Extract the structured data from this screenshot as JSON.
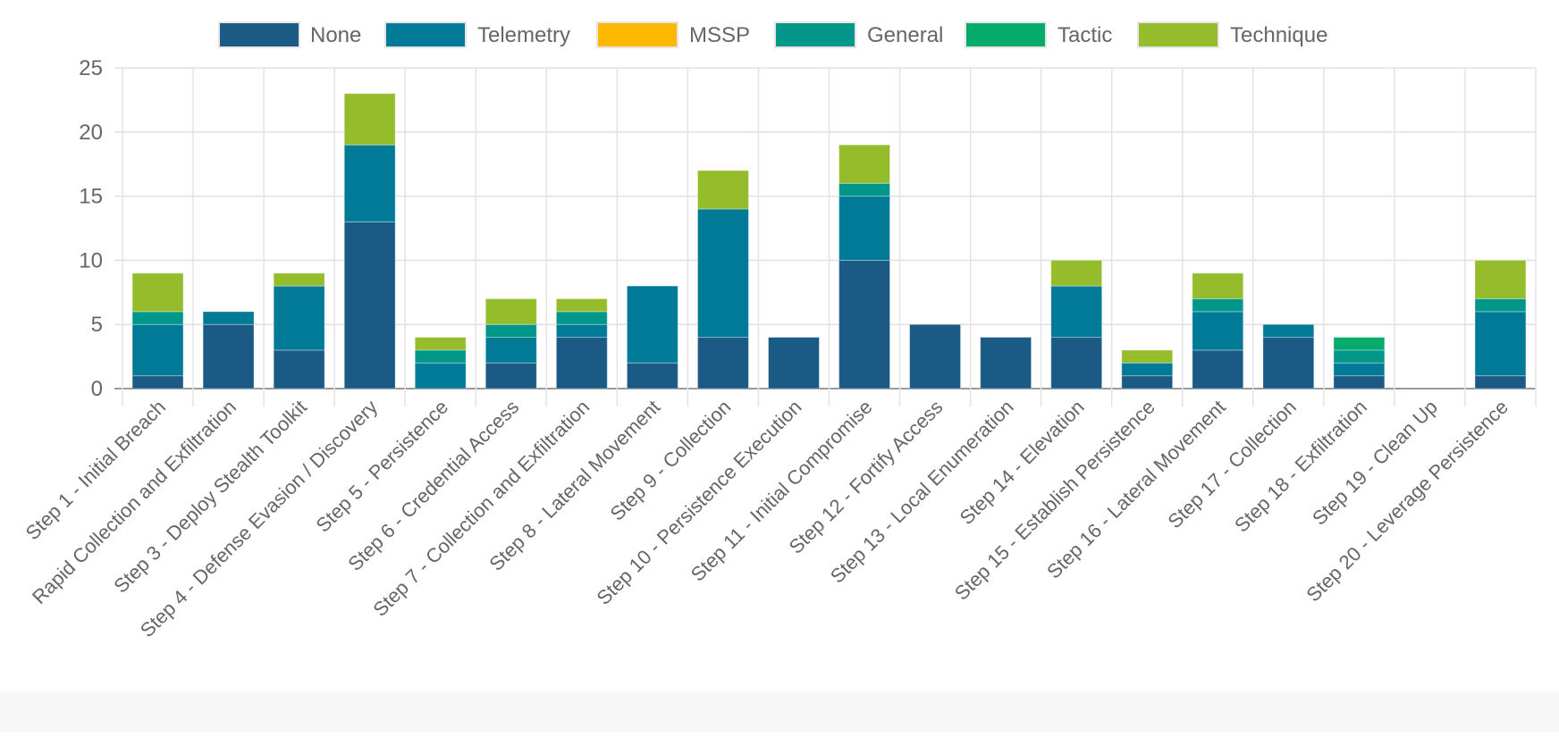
{
  "chart_data": {
    "type": "bar",
    "stacked": true,
    "title": "",
    "xlabel": "",
    "ylabel": "",
    "ylim": [
      0,
      25
    ],
    "yticks": [
      0,
      5,
      10,
      15,
      20,
      25
    ],
    "grid": true,
    "legend_position": "top-center",
    "categories": [
      "Step 1 - Initial Breach",
      "Rapid Collection and Exfiltration",
      "Step 3 - Deploy Stealth Toolkit",
      "Step 4 - Defense Evasion / Discovery",
      "Step 5 - Persistence",
      "Step 6 - Credential Access",
      "Step 7 - Collection and Exfiltration",
      "Step 8 - Lateral Movement",
      "Step 9 - Collection",
      "Step 10 - Persistence Execution",
      "Step 11 - Initial Compromise",
      "Step 12 - Fortify Access",
      "Step 13 - Local Enumeration",
      "Step 14 - Elevation",
      "Step 15 - Establish Persistence",
      "Step 16 - Lateral Movement",
      "Step 17 - Collection",
      "Step 18 - Exfiltration",
      "Step 19 - Clean Up",
      "Step 20 - Leverage Persistence"
    ],
    "series": [
      {
        "name": "None",
        "color": "#1a5a84",
        "values": [
          1,
          5,
          3,
          13,
          0,
          2,
          4,
          2,
          4,
          4,
          10,
          5,
          4,
          4,
          1,
          3,
          4,
          1,
          0,
          1
        ]
      },
      {
        "name": "Telemetry",
        "color": "#017a98",
        "values": [
          4,
          1,
          5,
          6,
          2,
          2,
          1,
          6,
          10,
          0,
          5,
          0,
          0,
          4,
          1,
          3,
          1,
          1,
          0,
          5
        ]
      },
      {
        "name": "MSSP",
        "color": "#fdb900",
        "values": [
          0,
          0,
          0,
          0,
          0,
          0,
          0,
          0,
          0,
          0,
          0,
          0,
          0,
          0,
          0,
          0,
          0,
          0,
          0,
          0
        ]
      },
      {
        "name": "General",
        "color": "#00968a",
        "values": [
          1,
          0,
          0,
          0,
          1,
          1,
          1,
          0,
          0,
          0,
          1,
          0,
          0,
          0,
          0,
          1,
          0,
          1,
          0,
          1
        ]
      },
      {
        "name": "Tactic",
        "color": "#04ab6a",
        "values": [
          0,
          0,
          0,
          0,
          0,
          0,
          0,
          0,
          0,
          0,
          0,
          0,
          0,
          0,
          0,
          0,
          0,
          1,
          0,
          0
        ]
      },
      {
        "name": "Technique",
        "color": "#95bc2b",
        "values": [
          3,
          0,
          1,
          4,
          1,
          2,
          1,
          0,
          3,
          0,
          3,
          0,
          0,
          2,
          1,
          2,
          0,
          0,
          0,
          3
        ]
      }
    ]
  }
}
